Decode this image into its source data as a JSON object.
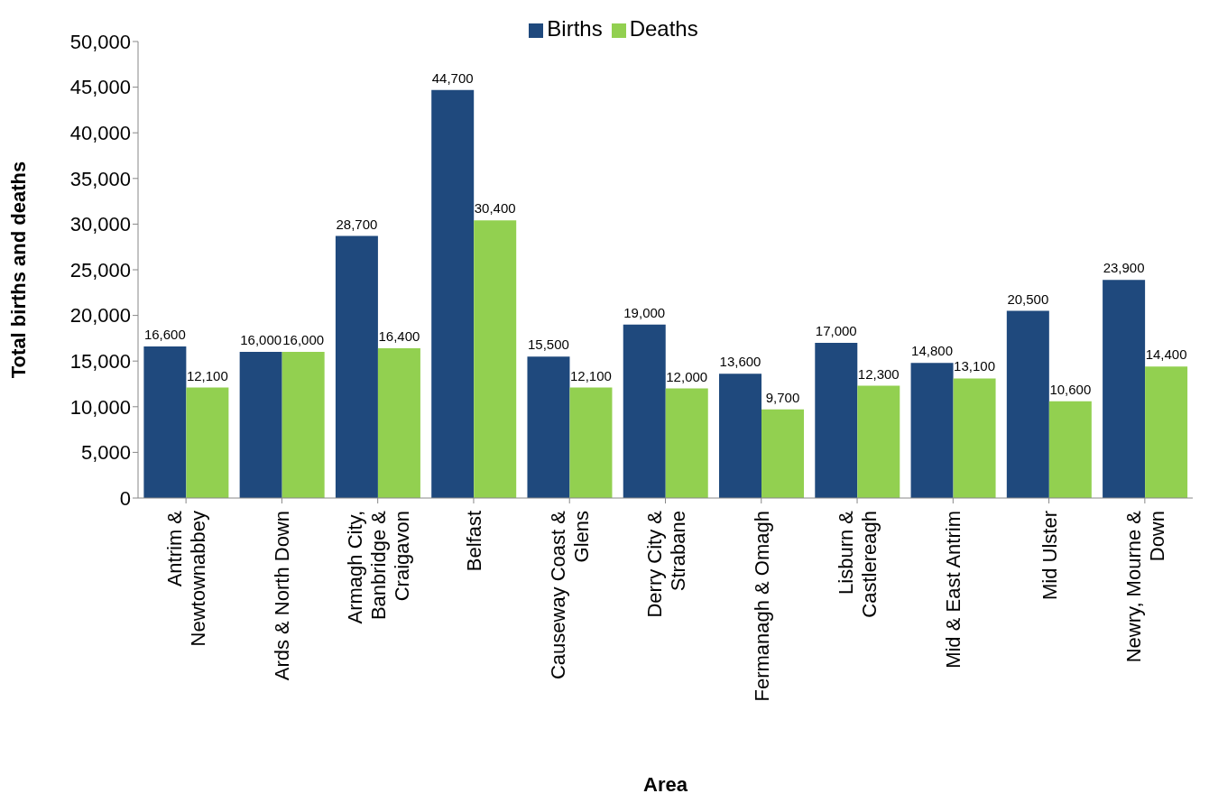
{
  "chart_data": {
    "type": "bar",
    "xlabel": "Area",
    "ylabel": "Total births and deaths",
    "categories": [
      "Antrim & Newtownabbey",
      "Ards & North Down",
      "Armagh City, Banbridge & Craigavon",
      "Belfast",
      "Causeway Coast & Glens",
      "Derry City & Strabane",
      "Fermanagh & Omagh",
      "Lisburn & Castlereagh",
      "Mid & East Antrim",
      "Mid Ulster",
      "Newry, Mourne & Down"
    ],
    "series": [
      {
        "name": "Births",
        "color": "#1f497d",
        "values": [
          16600,
          16000,
          28700,
          44700,
          15500,
          19000,
          13600,
          17000,
          14800,
          20500,
          23900
        ],
        "value_labels": [
          "16,600",
          "16,000",
          "28,700",
          "44,700",
          "15,500",
          "19,000",
          "13,600",
          "17,000",
          "14,800",
          "20,500",
          "23,900"
        ]
      },
      {
        "name": "Deaths",
        "color": "#92d050",
        "values": [
          12100,
          16000,
          16400,
          30400,
          12100,
          12000,
          9700,
          12300,
          13100,
          10600,
          14400
        ],
        "value_labels": [
          "12,100",
          "16,000",
          "16,400",
          "30,400",
          "12,100",
          "12,000",
          "9,700",
          "12,300",
          "13,100",
          "10,600",
          "14,400"
        ]
      }
    ],
    "ylim": [
      0,
      50000
    ],
    "yticks": [
      0,
      {
        "value": 5000,
        "label": "5,000"
      },
      {
        "value": 10000,
        "label": "10,000"
      },
      {
        "value": 15000,
        "label": "15,000"
      },
      {
        "value": 20000,
        "label": "20,000"
      },
      {
        "value": 25000,
        "label": "25,000"
      },
      {
        "value": 30000,
        "label": "30,000"
      },
      {
        "value": 35000,
        "label": "35,000"
      },
      {
        "value": 40000,
        "label": "40,000"
      },
      {
        "value": 45000,
        "label": "45,000"
      },
      {
        "value": 50000,
        "label": "50,000"
      }
    ],
    "legend": "top",
    "grid": false
  }
}
